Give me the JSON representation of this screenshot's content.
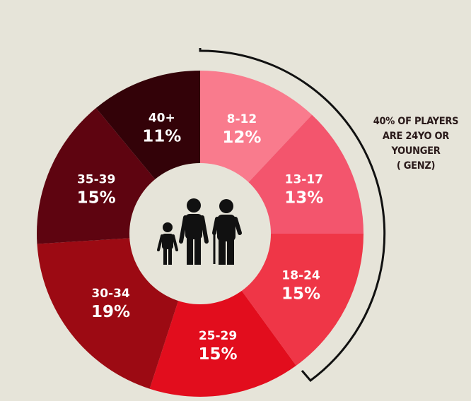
{
  "chart_data": {
    "type": "pie",
    "categories": [
      "8-12",
      "13-17",
      "18-24",
      "25-29",
      "30-34",
      "35-39",
      "40+"
    ],
    "values": [
      12,
      13,
      15,
      15,
      19,
      15,
      11
    ],
    "value_labels": [
      "12%",
      "13%",
      "15%",
      "15%",
      "19%",
      "15%",
      "11%"
    ],
    "colors": [
      "#f97b8d",
      "#f3556d",
      "#ef3647",
      "#e20d1d",
      "#9c0a13",
      "#5e0410",
      "#330208"
    ],
    "center_icon": "family-silhouette-icon",
    "annotation": {
      "lines": [
        "40% OF PLAYERS",
        "ARE 24YO OR",
        "YOUNGER",
        "( GENZ)"
      ],
      "bracket_covers": [
        "8-12",
        "13-17",
        "18-24"
      ]
    }
  }
}
